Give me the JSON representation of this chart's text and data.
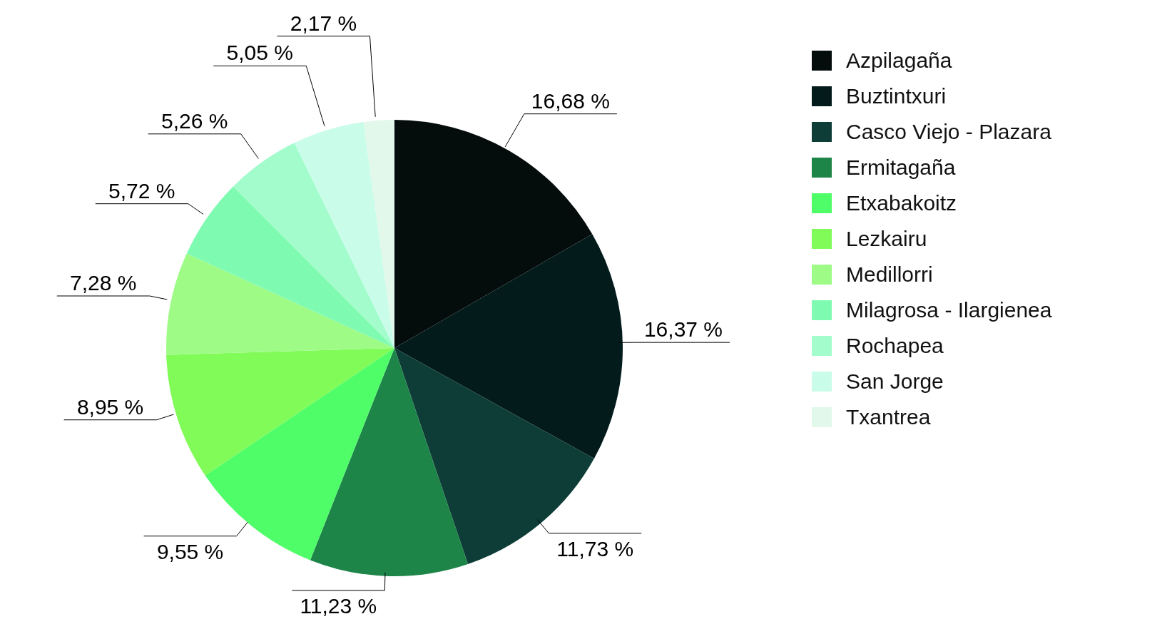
{
  "chart_data": {
    "type": "pie",
    "categories": [
      "Azpilagaña",
      "Buztintxuri",
      "Casco Viejo - Plazara",
      "Ermitagaña",
      "Etxabakoitz",
      "Lezkairu",
      "Medillorri",
      "Milagrosa - Ilargienea",
      "Rochapea",
      "San Jorge",
      "Txantrea"
    ],
    "values": [
      16.68,
      16.37,
      11.73,
      11.23,
      9.55,
      8.95,
      7.28,
      5.72,
      5.26,
      5.05,
      2.17
    ],
    "value_labels": [
      "16,68 %",
      "16,37 %",
      "11,73 %",
      "11,23 %",
      "9,55 %",
      "8,95 %",
      "7,28 %",
      "5,72 %",
      "5,26 %",
      "5,05 %",
      "2,17 %"
    ],
    "colors": [
      "#050c0c",
      "#041b1b",
      "#0e3d38",
      "#1e8549",
      "#4ffd68",
      "#80fb57",
      "#9dfb86",
      "#7ffbb1",
      "#a3fccc",
      "#c9fdea",
      "#e1f8ea"
    ],
    "legend": "top right"
  }
}
